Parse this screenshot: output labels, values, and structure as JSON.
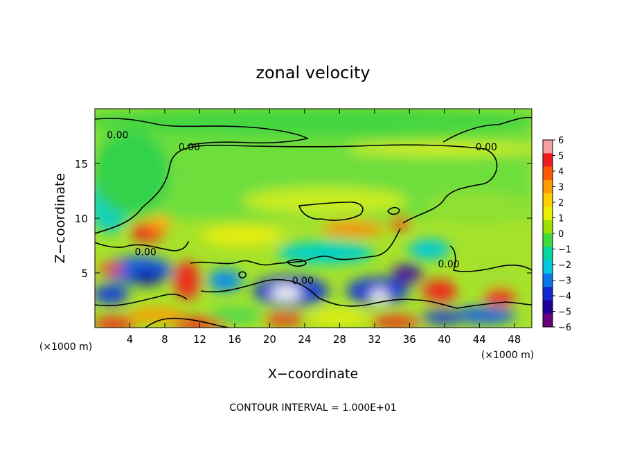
{
  "chart_data": {
    "type": "heatmap",
    "title": "zonal velocity",
    "xlabel": "X−coordinate",
    "ylabel": "Z−coordinate",
    "x_units": "(×1000 m)",
    "xlim": [
      0,
      50
    ],
    "ylim": [
      0,
      20
    ],
    "x_ticks": [
      4,
      8,
      12,
      16,
      20,
      24,
      28,
      32,
      36,
      40,
      44,
      48
    ],
    "y_ticks": [
      5,
      10,
      15
    ],
    "colorbar": {
      "levels": [
        6,
        5,
        4,
        3,
        2,
        1,
        0,
        -1,
        -2,
        -3,
        -4,
        -5,
        -6
      ],
      "labels": [
        "6",
        "5",
        "4",
        "3",
        "2",
        "1",
        "0",
        "−1",
        "−2",
        "−3",
        "−4",
        "−5",
        "−6"
      ],
      "colors": [
        "#f4a0a0",
        "#ee1c1c",
        "#ff5a00",
        "#ff9a00",
        "#ffd000",
        "#e8f000",
        "#a0e000",
        "#3cdc3c",
        "#00d8a0",
        "#00c8e0",
        "#0a78e8",
        "#1428d2",
        "#1e0096",
        "#6a007a"
      ]
    },
    "contour_labels": [
      {
        "text": "0.00",
        "x": 2.6,
        "z": 17.3
      },
      {
        "text": "0.00",
        "x": 10.8,
        "z": 16.2
      },
      {
        "text": "0.00",
        "x": 44.8,
        "z": 16.2
      },
      {
        "text": "0.00",
        "x": 5.8,
        "z": 6.6
      },
      {
        "text": "0.00",
        "x": 23.8,
        "z": 4.0
      },
      {
        "text": "0.00",
        "x": 40.5,
        "z": 5.5
      }
    ],
    "footer": "CONTOUR INTERVAL = 1.000E+01"
  }
}
